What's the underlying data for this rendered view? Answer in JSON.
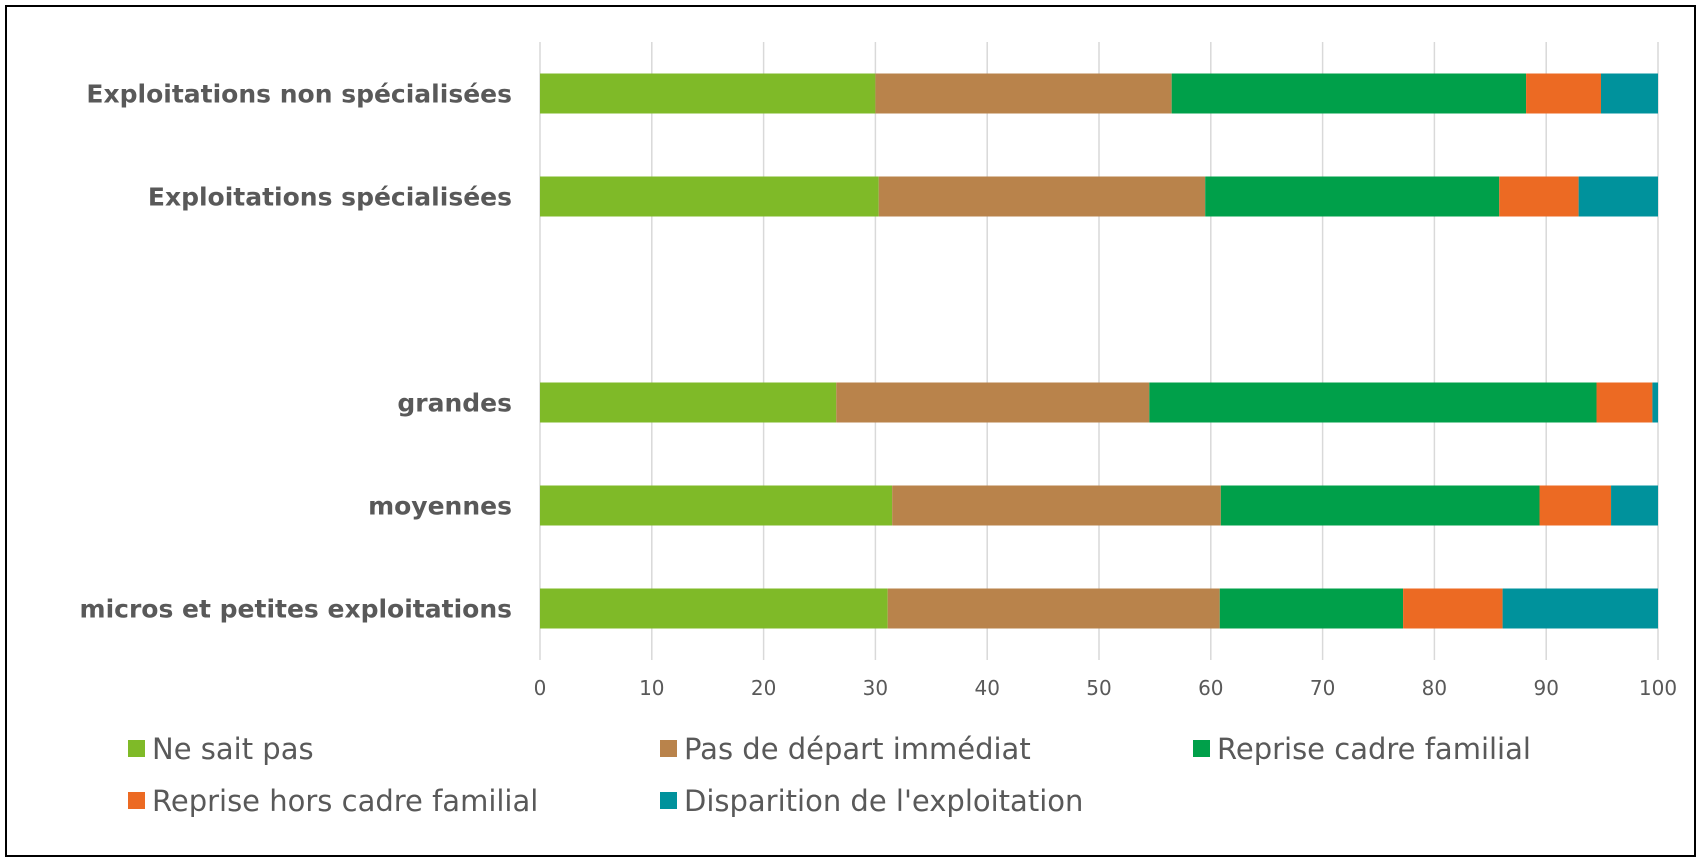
{
  "chart_data": {
    "type": "bar",
    "orientation": "horizontal",
    "stacked": true,
    "title": "",
    "xlabel": "",
    "ylabel": "",
    "xlim": [
      0,
      100
    ],
    "xticks": [
      "0",
      "10",
      "20",
      "30",
      "40",
      "50",
      "60",
      "70",
      "80",
      "90",
      "100"
    ],
    "grid": "vertical",
    "legend_position": "bottom",
    "categories": [
      "Exploitations non spécialisées",
      "Exploitations spécialisées",
      "",
      "grandes",
      "moyennes",
      "micros et petites exploitations"
    ],
    "series": [
      {
        "name": "Ne sait pas",
        "color": "#7fba28",
        "values": [
          30,
          30.3,
          null,
          26.5,
          31.5,
          31.1
        ]
      },
      {
        "name": "Pas de départ immédiat",
        "color": "#b9834b",
        "values": [
          26.5,
          29.2,
          null,
          28,
          29.4,
          29.7
        ]
      },
      {
        "name": "Reprise cadre familial",
        "color": "#00a04a",
        "values": [
          31.7,
          26.3,
          null,
          40,
          28.5,
          16.4
        ]
      },
      {
        "name": "Reprise hors cadre familial",
        "color": "#ec6a23",
        "values": [
          6.7,
          7.1,
          null,
          5,
          6.4,
          8.9
        ]
      },
      {
        "name": "Disparition de l'exploitation",
        "color": "#00929c",
        "values": [
          5.1,
          7.1,
          null,
          0.5,
          4.2,
          13.9
        ]
      }
    ]
  }
}
